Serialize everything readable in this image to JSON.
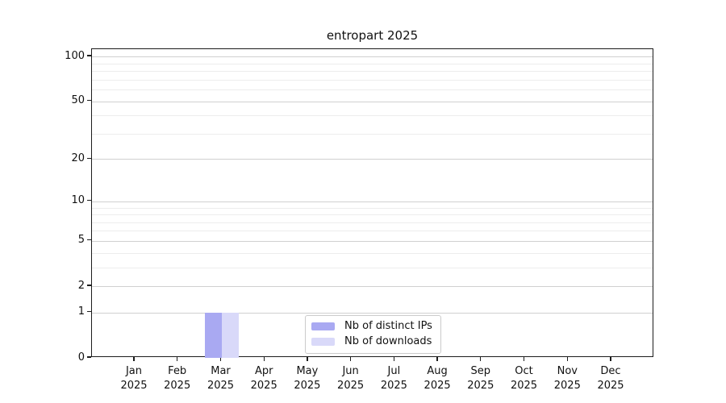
{
  "window": {
    "background": "#ffffff"
  },
  "chart_data": {
    "type": "bar",
    "title": "entropart 2025",
    "categories": [
      "Jan",
      "Feb",
      "Mar",
      "Apr",
      "May",
      "Jun",
      "Jul",
      "Aug",
      "Sep",
      "Oct",
      "Nov",
      "Dec"
    ],
    "category_sub_label": "2025",
    "series": [
      {
        "name": "Nb of distinct IPs",
        "color": "#a9a9f2",
        "values": [
          0,
          0,
          1,
          0,
          0,
          0,
          0,
          0,
          0,
          0,
          0,
          0
        ]
      },
      {
        "name": "Nb of downloads",
        "color": "#d9d9f9",
        "values": [
          0,
          0,
          1,
          0,
          0,
          0,
          0,
          0,
          0,
          0,
          0,
          0
        ]
      }
    ],
    "xlabel": "",
    "ylabel": "",
    "y_axis": {
      "scale": "log1p",
      "tick_values": [
        0,
        1,
        2,
        5,
        10,
        20,
        50,
        100
      ],
      "minor_grid_values": [
        3,
        4,
        6,
        7,
        8,
        9,
        30,
        40,
        60,
        70,
        80,
        90
      ],
      "ylim": [
        0,
        112
      ]
    },
    "grid": "horizontal",
    "legend": {
      "position": "bottom-center"
    },
    "colors": {
      "major_grid": "#d0d0d0",
      "minor_grid": "#ededed",
      "axis": "#1c1c1c",
      "text": "#111111",
      "legend_border": "#cbcbcb",
      "legend_background": "#ffffff"
    }
  }
}
